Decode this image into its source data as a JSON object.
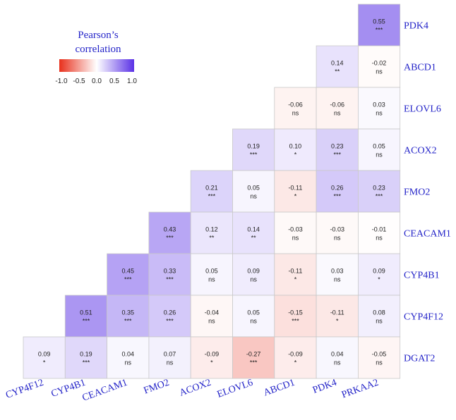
{
  "chart_data": {
    "type": "heatmap",
    "x_labels": [
      "CYP4F12",
      "CYP4B1",
      "CEACAM1",
      "FMO2",
      "ACOX2",
      "ELOVL6",
      "ABCD1",
      "PDK4",
      "PRKAA2"
    ],
    "y_labels": [
      "PDK4",
      "ABCD1",
      "ELOVL6",
      "ACOX2",
      "FMO2",
      "CEACAM1",
      "CYP4B1",
      "CYP4F12",
      "DGAT2"
    ],
    "cells": [
      {
        "row": 0,
        "col": 8,
        "value": 0.55,
        "sig": "***"
      },
      {
        "row": 1,
        "col": 7,
        "value": 0.14,
        "sig": "**"
      },
      {
        "row": 1,
        "col": 8,
        "value": -0.02,
        "sig": "ns"
      },
      {
        "row": 2,
        "col": 6,
        "value": -0.06,
        "sig": "ns"
      },
      {
        "row": 2,
        "col": 7,
        "value": -0.06,
        "sig": "ns"
      },
      {
        "row": 2,
        "col": 8,
        "value": 0.03,
        "sig": "ns"
      },
      {
        "row": 3,
        "col": 5,
        "value": 0.19,
        "sig": "***"
      },
      {
        "row": 3,
        "col": 6,
        "value": 0.1,
        "sig": "*"
      },
      {
        "row": 3,
        "col": 7,
        "value": 0.23,
        "sig": "***"
      },
      {
        "row": 3,
        "col": 8,
        "value": 0.05,
        "sig": "ns"
      },
      {
        "row": 4,
        "col": 4,
        "value": 0.21,
        "sig": "***"
      },
      {
        "row": 4,
        "col": 5,
        "value": 0.05,
        "sig": "ns"
      },
      {
        "row": 4,
        "col": 6,
        "value": -0.11,
        "sig": "*"
      },
      {
        "row": 4,
        "col": 7,
        "value": 0.26,
        "sig": "***"
      },
      {
        "row": 4,
        "col": 8,
        "value": 0.23,
        "sig": "***"
      },
      {
        "row": 5,
        "col": 3,
        "value": 0.43,
        "sig": "***"
      },
      {
        "row": 5,
        "col": 4,
        "value": 0.12,
        "sig": "**"
      },
      {
        "row": 5,
        "col": 5,
        "value": 0.14,
        "sig": "**"
      },
      {
        "row": 5,
        "col": 6,
        "value": -0.03,
        "sig": "ns"
      },
      {
        "row": 5,
        "col": 7,
        "value": -0.03,
        "sig": "ns"
      },
      {
        "row": 5,
        "col": 8,
        "value": -0.01,
        "sig": "ns"
      },
      {
        "row": 6,
        "col": 2,
        "value": 0.45,
        "sig": "***"
      },
      {
        "row": 6,
        "col": 3,
        "value": 0.33,
        "sig": "***"
      },
      {
        "row": 6,
        "col": 4,
        "value": 0.05,
        "sig": "ns"
      },
      {
        "row": 6,
        "col": 5,
        "value": 0.09,
        "sig": "ns"
      },
      {
        "row": 6,
        "col": 6,
        "value": -0.11,
        "sig": "*"
      },
      {
        "row": 6,
        "col": 7,
        "value": 0.03,
        "sig": "ns"
      },
      {
        "row": 6,
        "col": 8,
        "value": 0.09,
        "sig": "*"
      },
      {
        "row": 7,
        "col": 1,
        "value": 0.51,
        "sig": "***"
      },
      {
        "row": 7,
        "col": 2,
        "value": 0.35,
        "sig": "***"
      },
      {
        "row": 7,
        "col": 3,
        "value": 0.26,
        "sig": "***"
      },
      {
        "row": 7,
        "col": 4,
        "value": -0.04,
        "sig": "ns"
      },
      {
        "row": 7,
        "col": 5,
        "value": 0.05,
        "sig": "ns"
      },
      {
        "row": 7,
        "col": 6,
        "value": -0.15,
        "sig": "***"
      },
      {
        "row": 7,
        "col": 7,
        "value": -0.11,
        "sig": "*"
      },
      {
        "row": 7,
        "col": 8,
        "value": 0.08,
        "sig": "ns"
      },
      {
        "row": 8,
        "col": 0,
        "value": 0.09,
        "sig": "*"
      },
      {
        "row": 8,
        "col": 1,
        "value": 0.19,
        "sig": "***"
      },
      {
        "row": 8,
        "col": 2,
        "value": 0.04,
        "sig": "ns"
      },
      {
        "row": 8,
        "col": 3,
        "value": 0.07,
        "sig": "ns"
      },
      {
        "row": 8,
        "col": 4,
        "value": -0.09,
        "sig": "*"
      },
      {
        "row": 8,
        "col": 5,
        "value": -0.27,
        "sig": "***"
      },
      {
        "row": 8,
        "col": 6,
        "value": -0.09,
        "sig": "*"
      },
      {
        "row": 8,
        "col": 7,
        "value": 0.04,
        "sig": "ns"
      },
      {
        "row": 8,
        "col": 8,
        "value": -0.05,
        "sig": "ns"
      }
    ],
    "legend": {
      "title_line1": "Pearson’s",
      "title_line2": "correlation",
      "ticks": [
        "-1.0",
        "-0.5",
        "0.0",
        "0.5",
        "1.0"
      ],
      "range": [
        -1.0,
        1.0
      ],
      "placement": "top-left"
    },
    "colors": {
      "negative": "#e8301c",
      "zero": "#ffffff",
      "positive": "#5a31e6",
      "label": "#2323c8",
      "grid": "#c9c9c9"
    }
  }
}
